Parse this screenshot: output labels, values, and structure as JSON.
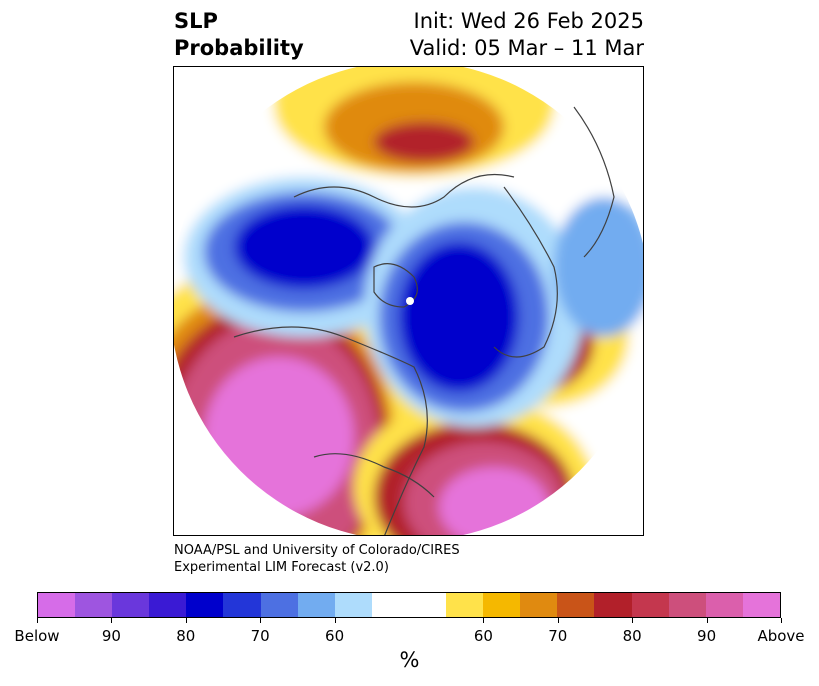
{
  "title": {
    "left_line1": "SLP",
    "left_line2": "Probability",
    "right_line1": "Init: Wed 26 Feb 2025",
    "right_line2": "Valid: 05 Mar – 11 Mar"
  },
  "credit": {
    "line1": "NOAA/PSL and University of Colorado/CIRES",
    "line2": "Experimental LIM Forecast (v2.0)"
  },
  "colorbar": {
    "unit": "%",
    "colors": [
      "#d66ce8",
      "#9e55e0",
      "#6a37dc",
      "#3a1ad4",
      "#0000cc",
      "#2336d8",
      "#4d70e2",
      "#72acf0",
      "#aedcfc",
      "#ffffff",
      "#ffe24a",
      "#f5b800",
      "#e08a10",
      "#c95418",
      "#b2202a",
      "#c4374e",
      "#cd4f7c",
      "#db5fac",
      "#e573da"
    ],
    "tick_labels": [
      "Below",
      "90",
      "80",
      "70",
      "60",
      "60",
      "70",
      "80",
      "90",
      "Above"
    ]
  },
  "map": {
    "colors": {
      "low_ext": "#0000cc",
      "low_strong": "#2336d8",
      "low_mod": "#4d70e2",
      "low_weak": "#72acf0",
      "low_faint": "#aedcfc",
      "high_faint": "#ffe24a",
      "high_weak": "#f5b800",
      "high_mod": "#e08a10",
      "high_strong": "#b2202a",
      "high_vstrong": "#cd4f7c",
      "high_ext": "#e573da",
      "coast": "#404040"
    }
  }
}
